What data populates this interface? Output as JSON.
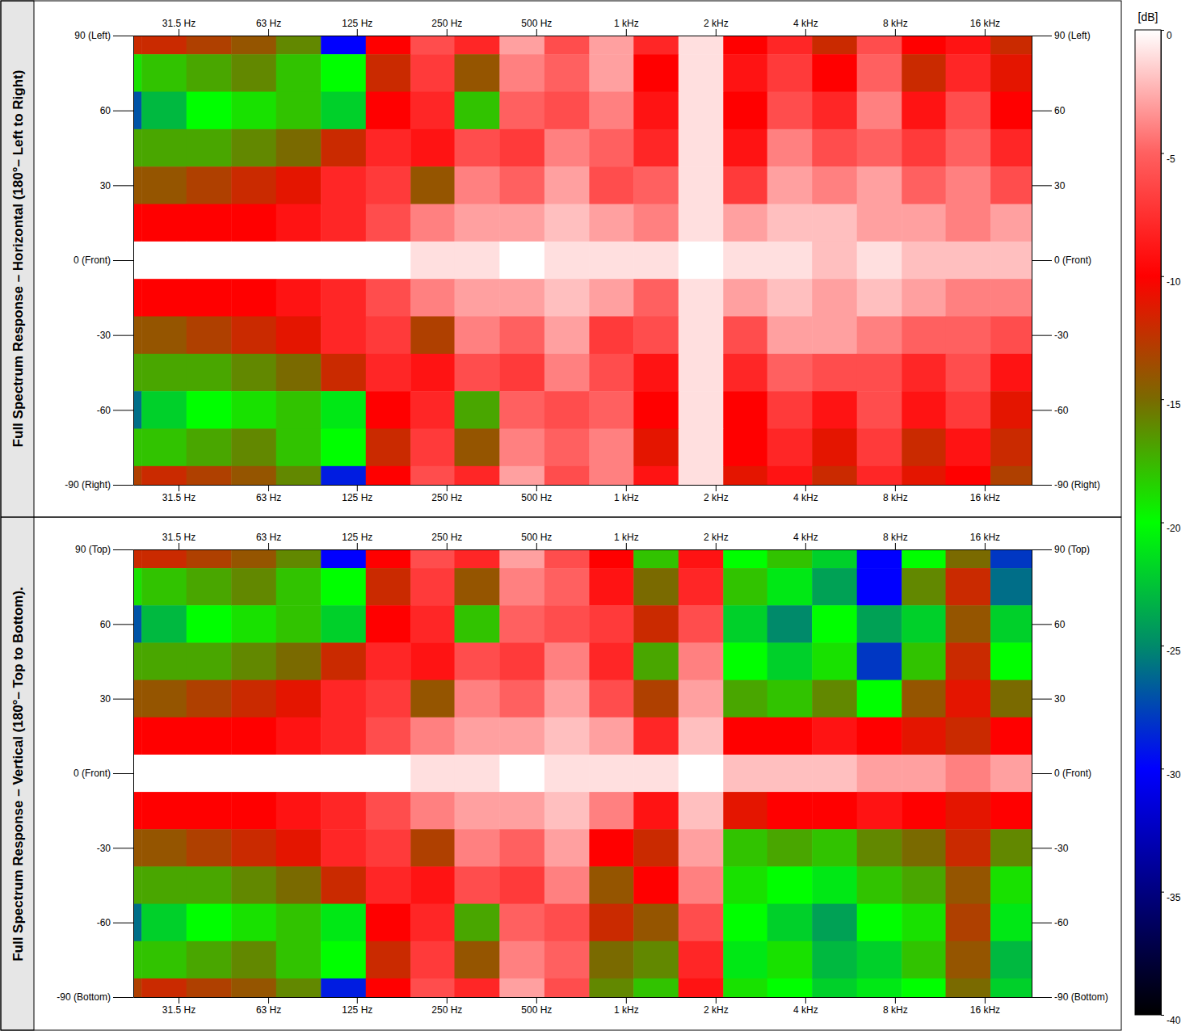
{
  "chart_data": [
    {
      "type": "heatmap",
      "title": "Full Spectrum Response – Horizontal (180°– Left to Right)",
      "log": "x",
      "x": [
        20,
        28,
        40,
        56,
        80,
        112,
        160,
        224,
        315,
        450,
        630,
        900,
        1250,
        1800,
        2500,
        3550,
        5000,
        7100,
        10000,
        14000,
        20000
      ],
      "y": [
        90,
        75,
        60,
        45,
        30,
        15,
        0,
        -15,
        -30,
        -45,
        -60,
        -75,
        -90
      ],
      "z": [
        [
          -12,
          -12,
          -13,
          -14,
          -16,
          -30,
          -10,
          -6,
          -8,
          -3,
          -6,
          -3,
          -8,
          -1,
          -10,
          -8,
          -12,
          -6,
          -10,
          -9,
          -12
        ],
        [
          -19,
          -18,
          -17,
          -16,
          -18,
          -20,
          -12,
          -7,
          -14,
          -4,
          -5,
          -3,
          -10,
          -1,
          -9,
          -7,
          -10,
          -5,
          -12,
          -8,
          -11
        ],
        [
          -27,
          -23,
          -20,
          -19,
          -18,
          -22,
          -10,
          -8,
          -18,
          -5,
          -6,
          -4,
          -9,
          -1,
          -10,
          -6,
          -8,
          -4,
          -9,
          -6,
          -10
        ],
        [
          -17,
          -17,
          -17,
          -16,
          -15,
          -12,
          -8,
          -9,
          -6,
          -7,
          -4,
          -5,
          -8,
          -1,
          -9,
          -4,
          -6,
          -5,
          -7,
          -5,
          -8
        ],
        [
          -14,
          -14,
          -13,
          -12,
          -11,
          -8,
          -7,
          -14,
          -4,
          -5,
          -3,
          -6,
          -5,
          -1,
          -7,
          -3,
          -4,
          -3,
          -5,
          -4,
          -6
        ],
        [
          -10,
          -10,
          -10,
          -10,
          -9,
          -8,
          -6,
          -4,
          -3,
          -3,
          -2,
          -3,
          -4,
          -1,
          -3,
          -2,
          -2,
          -3,
          -3,
          -4,
          -3
        ],
        [
          0,
          0,
          0,
          0,
          0,
          0,
          0,
          -1,
          -1,
          0,
          -1,
          -1,
          -1,
          0,
          -1,
          -1,
          -2,
          -1,
          -2,
          -2,
          -2
        ],
        [
          -10,
          -10,
          -10,
          -10,
          -9,
          -8,
          -6,
          -4,
          -3,
          -3,
          -2,
          -3,
          -5,
          -1,
          -3,
          -2,
          -3,
          -2,
          -3,
          -4,
          -4
        ],
        [
          -14,
          -14,
          -13,
          -12,
          -11,
          -8,
          -7,
          -13,
          -4,
          -5,
          -3,
          -7,
          -6,
          -1,
          -6,
          -3,
          -3,
          -4,
          -5,
          -5,
          -6
        ],
        [
          -17,
          -17,
          -17,
          -16,
          -15,
          -12,
          -8,
          -9,
          -6,
          -7,
          -4,
          -6,
          -9,
          -1,
          -8,
          -5,
          -6,
          -6,
          -8,
          -6,
          -9
        ],
        [
          -26,
          -22,
          -20,
          -19,
          -18,
          -21,
          -10,
          -8,
          -17,
          -5,
          -6,
          -5,
          -10,
          -1,
          -10,
          -7,
          -9,
          -6,
          -9,
          -7,
          -11
        ],
        [
          -18,
          -18,
          -17,
          -16,
          -18,
          -20,
          -12,
          -7,
          -14,
          -4,
          -5,
          -4,
          -11,
          -1,
          -10,
          -8,
          -11,
          -7,
          -12,
          -9,
          -12
        ],
        [
          -13,
          -12,
          -13,
          -14,
          -16,
          -29,
          -10,
          -6,
          -8,
          -3,
          -6,
          -4,
          -9,
          -1,
          -11,
          -9,
          -12,
          -8,
          -11,
          -10,
          -13
        ]
      ],
      "xlim": [
        22.2,
        23000
      ],
      "ylim": [
        -90,
        90
      ],
      "xticks": [
        {
          "value": 31.5,
          "label": "31.5 Hz"
        },
        {
          "value": 63,
          "label": "63 Hz"
        },
        {
          "value": 125,
          "label": "125 Hz"
        },
        {
          "value": 250,
          "label": "250 Hz"
        },
        {
          "value": 500,
          "label": "500 Hz"
        },
        {
          "value": 1000,
          "label": "1 kHz"
        },
        {
          "value": 2000,
          "label": "2 kHz"
        },
        {
          "value": 4000,
          "label": "4 kHz"
        },
        {
          "value": 8000,
          "label": "8 kHz"
        },
        {
          "value": 16000,
          "label": "16 kHz"
        }
      ],
      "yticks": [
        {
          "value": 90,
          "label": "90 (Left)"
        },
        60,
        30,
        {
          "value": 0,
          "label": "0 (Front)"
        },
        -30,
        -60,
        {
          "value": -90,
          "label": "-90 (Right)"
        }
      ],
      "colorbar": {
        "title": "[dB]",
        "range": [
          -40,
          0
        ],
        "ticks": [
          0,
          -5,
          -10,
          -15,
          -20,
          -25,
          -30,
          -35,
          -40
        ],
        "colors": [
          "#ffffff",
          "#ff6060",
          "#ff0000",
          "#7a6a00",
          "#00ff00",
          "#008a6a",
          "#0000ff",
          "#000080",
          "#000000"
        ]
      }
    },
    {
      "type": "heatmap",
      "title": "Full Spectrum Response – Vertical (180°– Top to Bottom).",
      "log": "x",
      "x": [
        20,
        28,
        40,
        56,
        80,
        112,
        160,
        224,
        315,
        450,
        630,
        900,
        1250,
        1800,
        2500,
        3550,
        5000,
        7100,
        10000,
        14000,
        20000
      ],
      "y": [
        90,
        75,
        60,
        45,
        30,
        15,
        0,
        -15,
        -30,
        -45,
        -60,
        -75,
        -90
      ],
      "z": [
        [
          -12,
          -12,
          -13,
          -14,
          -16,
          -30,
          -10,
          -6,
          -8,
          -3,
          -6,
          -10,
          -18,
          -9,
          -20,
          -18,
          -22,
          -30,
          -20,
          -15,
          -28
        ],
        [
          -19,
          -18,
          -17,
          -16,
          -18,
          -20,
          -12,
          -7,
          -14,
          -4,
          -5,
          -9,
          -15,
          -8,
          -18,
          -21,
          -24,
          -30,
          -16,
          -12,
          -26
        ],
        [
          -27,
          -23,
          -20,
          -19,
          -18,
          -22,
          -10,
          -8,
          -18,
          -5,
          -6,
          -7,
          -12,
          -6,
          -22,
          -25,
          -20,
          -24,
          -22,
          -14,
          -22
        ],
        [
          -17,
          -17,
          -17,
          -16,
          -15,
          -12,
          -8,
          -9,
          -6,
          -7,
          -4,
          -8,
          -17,
          -4,
          -20,
          -22,
          -19,
          -28,
          -18,
          -12,
          -20
        ],
        [
          -14,
          -14,
          -13,
          -12,
          -11,
          -8,
          -7,
          -14,
          -4,
          -5,
          -3,
          -6,
          -13,
          -3,
          -17,
          -18,
          -16,
          -20,
          -14,
          -11,
          -15
        ],
        [
          -10,
          -10,
          -10,
          -10,
          -9,
          -8,
          -6,
          -4,
          -3,
          -3,
          -2,
          -3,
          -8,
          -2,
          -10,
          -10,
          -9,
          -10,
          -11,
          -12,
          -10
        ],
        [
          0,
          0,
          0,
          0,
          0,
          0,
          0,
          -1,
          -1,
          0,
          -1,
          -1,
          -1,
          0,
          -2,
          -2,
          -2,
          -3,
          -3,
          -4,
          -3
        ],
        [
          -10,
          -10,
          -10,
          -10,
          -9,
          -8,
          -6,
          -4,
          -3,
          -3,
          -2,
          -4,
          -9,
          -2,
          -11,
          -10,
          -10,
          -9,
          -10,
          -11,
          -10
        ],
        [
          -14,
          -14,
          -13,
          -12,
          -11,
          -8,
          -7,
          -13,
          -4,
          -5,
          -3,
          -10,
          -12,
          -3,
          -18,
          -17,
          -18,
          -16,
          -15,
          -12,
          -16
        ],
        [
          -17,
          -17,
          -17,
          -16,
          -15,
          -12,
          -8,
          -9,
          -6,
          -7,
          -4,
          -14,
          -10,
          -4,
          -19,
          -20,
          -21,
          -18,
          -17,
          -14,
          -19
        ],
        [
          -26,
          -22,
          -20,
          -19,
          -18,
          -21,
          -10,
          -8,
          -17,
          -5,
          -6,
          -12,
          -14,
          -6,
          -20,
          -22,
          -24,
          -20,
          -19,
          -13,
          -21
        ],
        [
          -18,
          -18,
          -17,
          -16,
          -18,
          -20,
          -12,
          -7,
          -14,
          -4,
          -5,
          -15,
          -16,
          -8,
          -21,
          -19,
          -23,
          -22,
          -18,
          -14,
          -23
        ],
        [
          -13,
          -12,
          -13,
          -14,
          -16,
          -29,
          -10,
          -6,
          -8,
          -3,
          -6,
          -16,
          -18,
          -9,
          -19,
          -20,
          -22,
          -21,
          -20,
          -15,
          -22
        ]
      ],
      "xlim": [
        22.2,
        23000
      ],
      "ylim": [
        -90,
        90
      ],
      "xticks": [
        {
          "value": 31.5,
          "label": "31.5 Hz"
        },
        {
          "value": 63,
          "label": "63 Hz"
        },
        {
          "value": 125,
          "label": "125 Hz"
        },
        {
          "value": 250,
          "label": "250 Hz"
        },
        {
          "value": 500,
          "label": "500 Hz"
        },
        {
          "value": 1000,
          "label": "1 kHz"
        },
        {
          "value": 2000,
          "label": "2 kHz"
        },
        {
          "value": 4000,
          "label": "4 kHz"
        },
        {
          "value": 8000,
          "label": "8 kHz"
        },
        {
          "value": 16000,
          "label": "16 kHz"
        }
      ],
      "yticks": [
        {
          "value": 90,
          "label": "90 (Top)"
        },
        60,
        30,
        {
          "value": 0,
          "label": "0 (Front)"
        },
        -30,
        -60,
        {
          "value": -90,
          "label": "-90 (Bottom)"
        }
      ]
    }
  ]
}
